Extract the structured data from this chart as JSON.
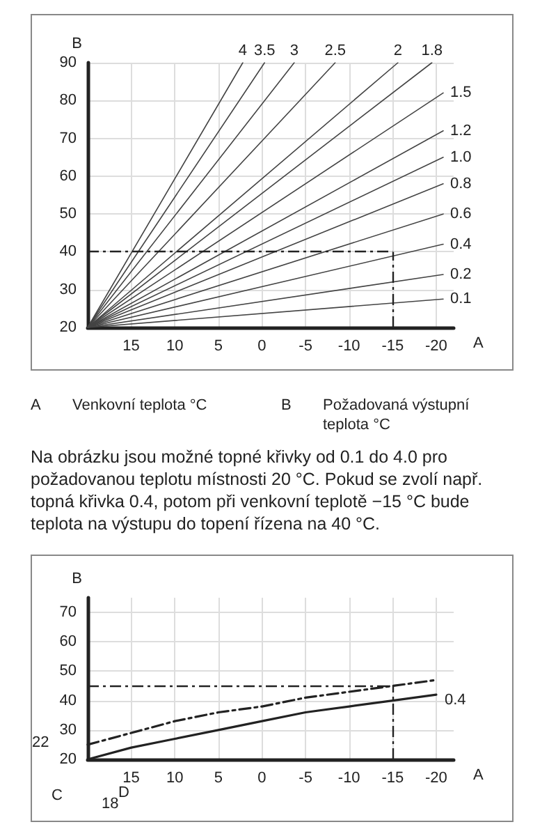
{
  "chart_data": [
    {
      "type": "line",
      "xlabel": "A",
      "ylabel": "B",
      "xlim": [
        20,
        -22
      ],
      "ylim": [
        20,
        90
      ],
      "xticks": [
        15,
        10,
        5,
        0,
        -5,
        -10,
        -15,
        -20
      ],
      "yticks": [
        20,
        30,
        40,
        50,
        60,
        70,
        80,
        90
      ],
      "grid": true,
      "series": [
        {
          "name": "4",
          "color": "#444444",
          "x": [
            20,
            2.2
          ],
          "values": [
            20,
            90
          ]
        },
        {
          "name": "3.5",
          "color": "#444444",
          "x": [
            20,
            -0.3
          ],
          "values": [
            20,
            90
          ]
        },
        {
          "name": "3",
          "color": "#444444",
          "x": [
            20,
            -3.7
          ],
          "values": [
            20,
            90
          ]
        },
        {
          "name": "2.5",
          "color": "#444444",
          "x": [
            20,
            -8.4
          ],
          "values": [
            20,
            90
          ]
        },
        {
          "name": "2",
          "color": "#444444",
          "x": [
            20,
            -15.6
          ],
          "values": [
            20,
            90
          ]
        },
        {
          "name": "1.8",
          "color": "#444444",
          "x": [
            20,
            -19.5
          ],
          "values": [
            20,
            90
          ]
        },
        {
          "name": "1.5",
          "color": "#444444",
          "x": [
            20,
            -20.8
          ],
          "values": [
            20,
            82
          ]
        },
        {
          "name": "1.2",
          "color": "#444444",
          "x": [
            20,
            -20.8
          ],
          "values": [
            20,
            72
          ]
        },
        {
          "name": "1.0",
          "color": "#444444",
          "x": [
            20,
            -20.8
          ],
          "values": [
            20,
            65
          ]
        },
        {
          "name": "0.8",
          "color": "#444444",
          "x": [
            20,
            -20.8
          ],
          "values": [
            20,
            58
          ]
        },
        {
          "name": "0.6",
          "color": "#444444",
          "x": [
            20,
            -20.8
          ],
          "values": [
            20,
            50
          ]
        },
        {
          "name": "0.4",
          "color": "#444444",
          "x": [
            20,
            -20.8
          ],
          "values": [
            20,
            42
          ]
        },
        {
          "name": "0.2",
          "color": "#444444",
          "x": [
            20,
            -20.8
          ],
          "values": [
            20,
            34
          ]
        },
        {
          "name": "0.1",
          "color": "#444444",
          "x": [
            20,
            -20.8
          ],
          "values": [
            20,
            27.5
          ]
        }
      ],
      "ref_lines": [
        {
          "axis": "y",
          "value": 40,
          "color": "#222222",
          "line_style": "dashed"
        },
        {
          "axis": "x",
          "value": -15,
          "color": "#222222",
          "line_style": "dashed"
        }
      ],
      "annotations": [
        "A",
        "Venkovní teplota °C",
        "B",
        "Požadovaná výstupní teplota °C",
        "Na obrázku jsou možné topné křivky od 0.1 do 4.0 pro požadovanou teplotu místnosti 20 °C. Pokud se zvolí např. topná křivka 0.4, potom při venkovní teplotě −15 °C bude teplota na výstupu do topení řízena na 40 °C."
      ]
    },
    {
      "type": "line",
      "xlabel": "A",
      "ylabel": "B",
      "xlim": [
        20,
        -22
      ],
      "ylim": [
        20,
        75
      ],
      "xticks": [
        15,
        10,
        5,
        0,
        -5,
        -10,
        -15,
        -20
      ],
      "yticks": [
        20,
        30,
        40,
        50,
        60,
        70
      ],
      "grid": true,
      "series": [
        {
          "name": "0.4",
          "color": "#222222",
          "x": [
            20,
            15,
            10,
            5,
            0,
            -5,
            -10,
            -15,
            -20
          ],
          "values": [
            20,
            24,
            27,
            30,
            33,
            36,
            38,
            40,
            42
          ]
        },
        {
          "color": "#222222",
          "line_style": "dashed",
          "x": [
            20,
            15,
            10,
            5,
            0,
            -5,
            -10,
            -15,
            -20
          ],
          "values": [
            25,
            29,
            33,
            36,
            38,
            41,
            43,
            45,
            47
          ]
        }
      ],
      "ref_lines": [
        {
          "axis": "y",
          "value": 45,
          "color": "#222222",
          "line_style": "dashed"
        },
        {
          "axis": "x",
          "value": -15,
          "color": "#222222",
          "line_style": "dashed"
        }
      ],
      "annotations": [
        "C",
        "22",
        "18",
        "D"
      ]
    }
  ]
}
